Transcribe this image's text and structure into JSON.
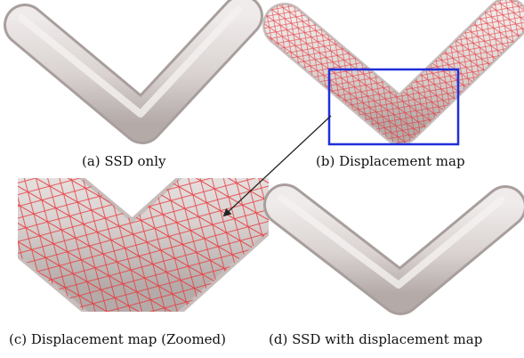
{
  "figure": {
    "panels": [
      {
        "id": "a",
        "caption": "(a) SSD only"
      },
      {
        "id": "b",
        "caption": "(b) Displacement map"
      },
      {
        "id": "c",
        "caption": "(c) Displacement map (Zoomed)"
      },
      {
        "id": "d",
        "caption": "(d) SSD with displacement map"
      }
    ],
    "colors": {
      "tube_fill": "#dcd5d3",
      "tube_shadow": "#b9b1af",
      "mesh": "#e8383c",
      "zoom_box": "#1f2fd8",
      "arrow": "#222222"
    }
  }
}
